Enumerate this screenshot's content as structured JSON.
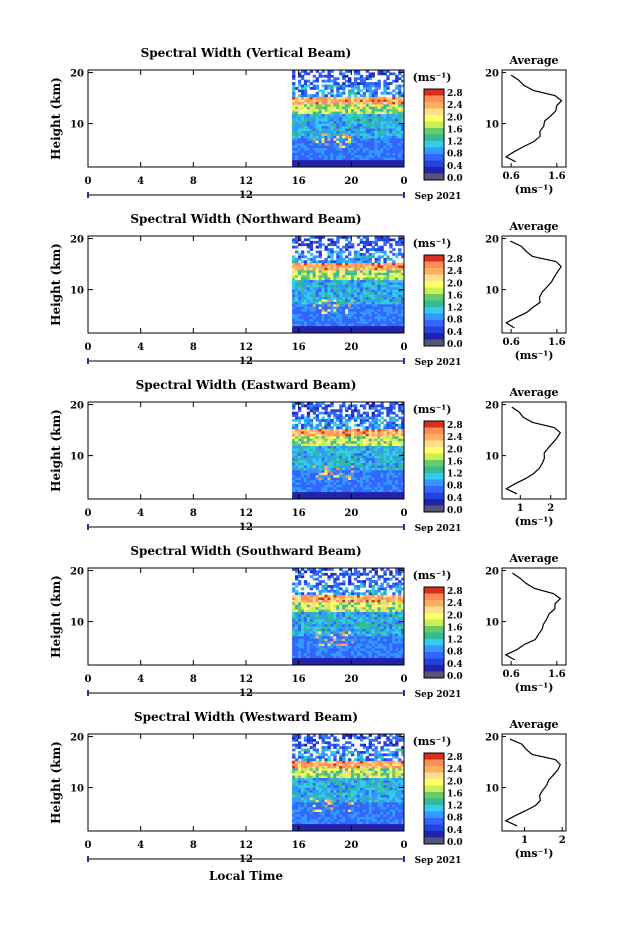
{
  "chart_data": {
    "type": "heatmap",
    "colorbar_unit": "(ms⁻¹)",
    "average_title": "Average",
    "average_xlabel": "(ms⁻¹)",
    "ylabel": "Height (km)",
    "xlabel": "Local Time",
    "date_label": "Sep 2021",
    "time_xlim": [
      0,
      24
    ],
    "time_xticks": [
      "0",
      "4",
      "8",
      "12",
      "16",
      "20",
      "0"
    ],
    "secondary_tick": "12",
    "height_ylim": [
      1.5,
      20.5
    ],
    "height_ticks": [
      "20",
      "10"
    ],
    "colorbar_ticks": [
      "2.8",
      "2.4",
      "2.0",
      "1.6",
      "1.2",
      "0.8",
      "0.4",
      "0.0"
    ],
    "data_start_hour": 15.5,
    "colors": {
      "red": "#d7301f",
      "orange": "#fdae61",
      "yellow": "#ffff66",
      "green": "#66cc66",
      "cyan": "#33ccee",
      "blue": "#3366ff",
      "navy": "#2222aa",
      "gray": "#555577"
    },
    "panels": [
      {
        "title": "Spectral Width (Vertical Beam)",
        "avg_ticks": [
          "0.6",
          "1.6"
        ],
        "avg_xlim": [
          0.4,
          1.8
        ]
      },
      {
        "title": "Spectral Width (Northward Beam)",
        "avg_ticks": [
          "0.6",
          "1.6"
        ],
        "avg_xlim": [
          0.4,
          1.8
        ]
      },
      {
        "title": "Spectral Width (Eastward Beam)",
        "avg_ticks": [
          "1",
          "2"
        ],
        "avg_xlim": [
          0.4,
          2.5
        ]
      },
      {
        "title": "Spectral Width (Southward Beam)",
        "avg_ticks": [
          "0.6",
          "1.6"
        ],
        "avg_xlim": [
          0.4,
          1.8
        ]
      },
      {
        "title": "Spectral Width (Westward Beam)",
        "avg_ticks": [
          "1",
          "2"
        ],
        "avg_xlim": [
          0.4,
          2.1
        ]
      }
    ],
    "average_profile": {
      "height": [
        2.5,
        3.5,
        4.5,
        5.5,
        6.5,
        7.5,
        8.5,
        9.5,
        10.5,
        11.5,
        12.5,
        13.5,
        14.5,
        15.5,
        16.5,
        17.5,
        18.5,
        19.5
      ],
      "value": [
        0.7,
        0.5,
        0.7,
        0.9,
        1.1,
        1.2,
        1.25,
        1.3,
        1.35,
        1.45,
        1.55,
        1.6,
        1.7,
        1.55,
        1.1,
        0.9,
        0.8,
        0.6
      ]
    }
  }
}
